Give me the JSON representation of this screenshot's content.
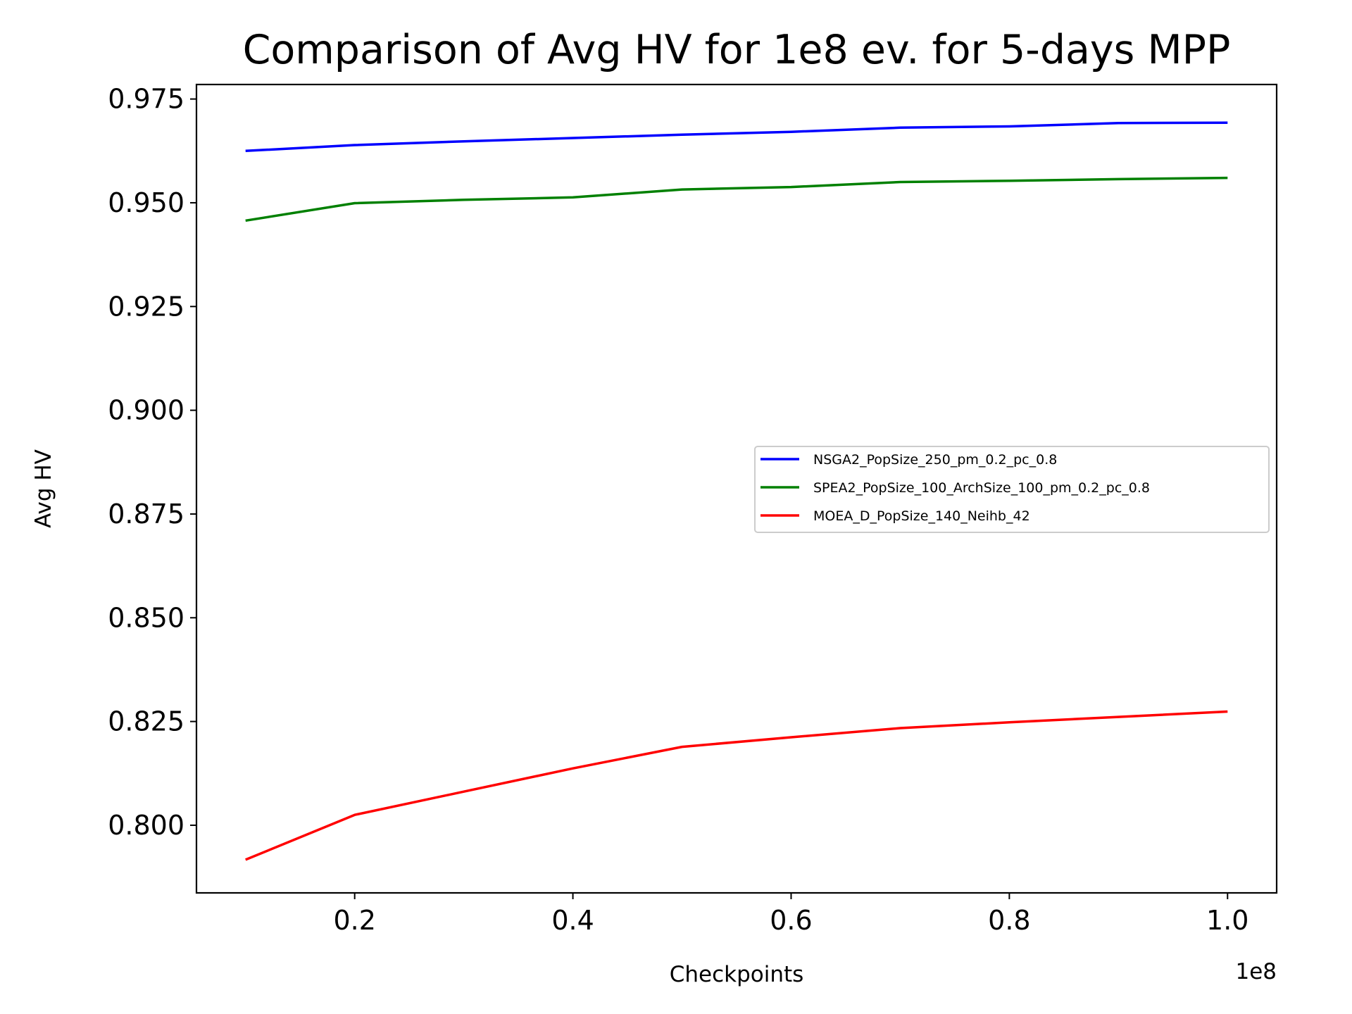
{
  "chart_data": {
    "type": "line",
    "title": "Comparison of Avg HV for 1e8 ev. for 5-days MPP",
    "xlabel": "Checkpoints",
    "ylabel": "Avg HV",
    "x_offset_label": "1e8",
    "x_scale": 100000000,
    "xlim": [
      0.055,
      1.045
    ],
    "ylim": [
      0.7837,
      0.9785
    ],
    "x_ticks": [
      0.2,
      0.4,
      0.6,
      0.8,
      1.0
    ],
    "x_tick_labels": [
      "0.2",
      "0.4",
      "0.6",
      "0.8",
      "1.0"
    ],
    "y_ticks": [
      0.8,
      0.825,
      0.85,
      0.875,
      0.9,
      0.925,
      0.95,
      0.975
    ],
    "y_tick_labels": [
      "0.800",
      "0.825",
      "0.850",
      "0.875",
      "0.900",
      "0.925",
      "0.950",
      "0.975"
    ],
    "grid": false,
    "legend_position": "center-right",
    "x": [
      10000000,
      20000000,
      30000000,
      40000000,
      50000000,
      60000000,
      70000000,
      80000000,
      90000000,
      100000000
    ],
    "series": [
      {
        "name": "NSGA2_PopSize_250_pm_0.2_pc_0.8",
        "color": "#0000ff",
        "values": [
          0.9625,
          0.9639,
          0.9648,
          0.9656,
          0.9664,
          0.9671,
          0.9681,
          0.9684,
          0.9692,
          0.9693
        ]
      },
      {
        "name": "SPEA2_PopSize_100_ArchSize_100_pm_0.2_pc_0.8",
        "color": "#008000",
        "values": [
          0.9457,
          0.9499,
          0.9507,
          0.9513,
          0.9532,
          0.9538,
          0.955,
          0.9553,
          0.9557,
          0.956
        ]
      },
      {
        "name": "MOEA_D_PopSize_140_Neihb_42",
        "color": "#ff0000",
        "values": [
          0.7917,
          0.8025,
          0.8081,
          0.8137,
          0.8189,
          0.8212,
          0.8234,
          0.8248,
          0.8261,
          0.8274
        ]
      }
    ]
  }
}
